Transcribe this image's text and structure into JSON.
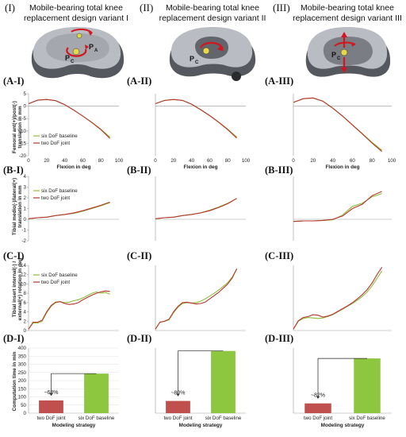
{
  "figure": {
    "columns": [
      {
        "roman": "(I)",
        "title_line1": "Mobile-bearing total knee",
        "title_line2": "replacement design variant I",
        "points": [
          "P",
          "A",
          "P",
          "C"
        ]
      },
      {
        "roman": "(II)",
        "title_line1": "Mobile-bearing total knee",
        "title_line2": "replacement design variant II",
        "points": [
          "P",
          "C"
        ]
      },
      {
        "roman": "(III)",
        "title_line1": "Mobile-bearing total knee",
        "title_line2": "replacement design variant III",
        "points": [
          "P",
          "C"
        ]
      }
    ],
    "colors": {
      "six_dof": "#8fbc3a",
      "two_dof": "#b8352e",
      "bar_two": "#c0504d",
      "bar_six": "#8dc63f",
      "implant_light": "#b9bcc2",
      "implant_dark": "#55585e",
      "arrow": "#d4161c",
      "ball": "#e6d84a"
    }
  },
  "chart_data": [
    {
      "id": "A-I",
      "type": "line",
      "panel_label": "(A-I)",
      "ylabel_line1": "Femoral ant(+)/post(-)",
      "ylabel_line2": "translation in mm",
      "xlabel": "Flexion in deg",
      "xlim": [
        0,
        100
      ],
      "ylim": [
        -20,
        5
      ],
      "xticks": [
        0,
        20,
        40,
        60,
        80,
        100
      ],
      "yticks": [
        -20,
        -15,
        -10,
        -5,
        0,
        5
      ],
      "legend": [
        "six DoF baseline",
        "two DoF joint"
      ],
      "series": [
        {
          "name": "six DoF baseline",
          "x": [
            0,
            10,
            20,
            30,
            40,
            50,
            60,
            70,
            80,
            90
          ],
          "y": [
            1.0,
            2.4,
            2.7,
            2.2,
            0.6,
            -1.6,
            -4.0,
            -6.5,
            -9.3,
            -12.5
          ]
        },
        {
          "name": "two DoF joint",
          "x": [
            0,
            10,
            20,
            30,
            40,
            50,
            60,
            70,
            80,
            90
          ],
          "y": [
            1.0,
            2.4,
            2.7,
            2.2,
            0.6,
            -1.6,
            -4.0,
            -6.6,
            -9.5,
            -13.0
          ]
        }
      ]
    },
    {
      "id": "A-II",
      "type": "line",
      "panel_label": "(A-II)",
      "xlabel": "Flexion in deg",
      "xlim": [
        0,
        100
      ],
      "ylim": [
        -20,
        5
      ],
      "xticks": [
        0,
        20,
        40,
        60,
        80,
        100
      ],
      "yticks": [],
      "series": [
        {
          "name": "six DoF baseline",
          "x": [
            0,
            10,
            20,
            30,
            40,
            50,
            60,
            70,
            80,
            90
          ],
          "y": [
            1.0,
            2.3,
            2.7,
            2.3,
            0.8,
            -1.4,
            -3.8,
            -6.4,
            -9.3,
            -12.5
          ]
        },
        {
          "name": "two DoF joint",
          "x": [
            0,
            10,
            20,
            30,
            40,
            50,
            60,
            70,
            80,
            90
          ],
          "y": [
            1.0,
            2.3,
            2.7,
            2.3,
            0.8,
            -1.4,
            -3.8,
            -6.5,
            -9.5,
            -12.9
          ]
        }
      ]
    },
    {
      "id": "A-III",
      "type": "line",
      "panel_label": "(A-III)",
      "xlabel": "Flexion in deg",
      "xlim": [
        0,
        100
      ],
      "ylim": [
        -20,
        5
      ],
      "xticks": [
        0,
        20,
        40,
        60,
        80,
        100
      ],
      "yticks": [],
      "series": [
        {
          "name": "six DoF baseline",
          "x": [
            0,
            10,
            20,
            30,
            40,
            50,
            60,
            70,
            80,
            90
          ],
          "y": [
            1.5,
            3.0,
            3.3,
            2.0,
            -0.8,
            -4.0,
            -7.5,
            -11.0,
            -14.6,
            -17.8
          ]
        },
        {
          "name": "two DoF joint",
          "x": [
            0,
            10,
            20,
            30,
            40,
            50,
            60,
            70,
            80,
            90
          ],
          "y": [
            1.5,
            3.0,
            3.3,
            2.0,
            -0.8,
            -4.0,
            -7.6,
            -11.2,
            -14.9,
            -18.3
          ]
        }
      ]
    },
    {
      "id": "B-I",
      "type": "line",
      "panel_label": "(B-I)",
      "ylabel_line1": "Tibial medio(-)/lateral(+)",
      "ylabel_line2": "translation in mm",
      "xlim": [
        0,
        100
      ],
      "ylim": [
        -2,
        4
      ],
      "yticks": [
        -2,
        -1,
        0,
        1,
        2,
        3,
        4
      ],
      "legend": [
        "six DoF baseline",
        "two DoF joint"
      ],
      "series": [
        {
          "name": "six DoF baseline",
          "x": [
            0,
            10,
            20,
            30,
            40,
            50,
            60,
            70,
            80,
            90
          ],
          "y": [
            0.05,
            0.15,
            0.2,
            0.35,
            0.45,
            0.55,
            0.75,
            1.0,
            1.25,
            1.55
          ]
        },
        {
          "name": "two DoF joint",
          "x": [
            0,
            10,
            20,
            30,
            40,
            50,
            60,
            70,
            80,
            90
          ],
          "y": [
            0.05,
            0.15,
            0.2,
            0.35,
            0.45,
            0.6,
            0.8,
            1.05,
            1.3,
            1.6
          ]
        }
      ]
    },
    {
      "id": "B-II",
      "type": "line",
      "panel_label": "(B-II)",
      "xlim": [
        0,
        100
      ],
      "ylim": [
        -2,
        4
      ],
      "series": [
        {
          "name": "six DoF baseline",
          "x": [
            0,
            10,
            20,
            30,
            40,
            50,
            60,
            70,
            80,
            90
          ],
          "y": [
            0.05,
            0.15,
            0.2,
            0.35,
            0.45,
            0.6,
            0.85,
            1.15,
            1.5,
            1.95
          ]
        },
        {
          "name": "two DoF joint",
          "x": [
            0,
            10,
            20,
            30,
            40,
            50,
            60,
            70,
            80,
            90
          ],
          "y": [
            0.05,
            0.15,
            0.2,
            0.35,
            0.45,
            0.6,
            0.8,
            1.1,
            1.45,
            1.95
          ]
        }
      ]
    },
    {
      "id": "B-III",
      "type": "line",
      "panel_label": "(B-III)",
      "xlim": [
        0,
        100
      ],
      "ylim": [
        -2,
        4
      ],
      "series": [
        {
          "name": "six DoF baseline",
          "x": [
            0,
            10,
            20,
            30,
            40,
            50,
            60,
            70,
            80,
            90
          ],
          "y": [
            -0.2,
            -0.15,
            -0.15,
            -0.1,
            -0.05,
            0.4,
            1.2,
            1.5,
            2.1,
            2.4
          ]
        },
        {
          "name": "two DoF joint",
          "x": [
            0,
            10,
            20,
            30,
            40,
            50,
            60,
            70,
            80,
            90
          ],
          "y": [
            -0.2,
            -0.15,
            -0.15,
            -0.1,
            0.0,
            0.3,
            1.0,
            1.4,
            2.2,
            2.6
          ]
        }
      ]
    },
    {
      "id": "C-I",
      "type": "line",
      "panel_label": "(C-I)",
      "ylabel_line1": "Tibial insert internal(-) /",
      "ylabel_line2": "external(+) rotation in deg",
      "xlim": [
        0,
        100
      ],
      "ylim": [
        0,
        14
      ],
      "yticks": [
        0,
        2,
        4,
        6,
        8,
        10,
        12,
        14
      ],
      "legend": [
        "six DoF baseline",
        "two DoF joint"
      ],
      "series": [
        {
          "name": "six DoF baseline",
          "x": [
            0,
            5,
            10,
            15,
            20,
            25,
            30,
            35,
            40,
            45,
            50,
            55,
            60,
            65,
            70,
            75,
            80,
            85,
            90
          ],
          "y": [
            0.3,
            1.6,
            1.6,
            2.0,
            3.8,
            5.2,
            6.0,
            6.2,
            6.0,
            6.1,
            6.4,
            6.6,
            7.0,
            7.5,
            8.0,
            8.3,
            8.0,
            8.2,
            7.8
          ]
        },
        {
          "name": "two DoF joint",
          "x": [
            0,
            5,
            10,
            15,
            20,
            25,
            30,
            35,
            40,
            45,
            50,
            55,
            60,
            65,
            70,
            75,
            80,
            85,
            90
          ],
          "y": [
            0.3,
            1.8,
            1.8,
            2.2,
            4.0,
            5.4,
            6.1,
            6.2,
            5.8,
            5.6,
            5.7,
            6.0,
            6.6,
            7.1,
            7.6,
            8.0,
            8.3,
            8.5,
            8.4
          ]
        }
      ]
    },
    {
      "id": "C-II",
      "type": "line",
      "panel_label": "(C-II)",
      "xlim": [
        0,
        100
      ],
      "ylim": [
        0,
        14
      ],
      "series": [
        {
          "name": "six DoF baseline",
          "x": [
            0,
            5,
            10,
            15,
            20,
            25,
            30,
            35,
            40,
            45,
            50,
            55,
            60,
            65,
            70,
            75,
            80,
            85,
            90
          ],
          "y": [
            0.3,
            1.8,
            2.0,
            2.3,
            3.8,
            5.0,
            5.8,
            6.0,
            5.9,
            6.0,
            6.3,
            6.8,
            7.4,
            8.0,
            8.7,
            9.5,
            10.3,
            11.5,
            13.2
          ]
        },
        {
          "name": "two DoF joint",
          "x": [
            0,
            5,
            10,
            15,
            20,
            25,
            30,
            35,
            40,
            45,
            50,
            55,
            60,
            65,
            70,
            75,
            80,
            85,
            90
          ],
          "y": [
            0.3,
            1.8,
            2.0,
            2.4,
            4.0,
            5.2,
            6.0,
            6.1,
            5.9,
            5.7,
            5.8,
            6.1,
            6.8,
            7.5,
            8.2,
            9.1,
            10.0,
            11.3,
            13.3
          ]
        }
      ]
    },
    {
      "id": "C-III",
      "type": "line",
      "panel_label": "(C-III)",
      "xlim": [
        0,
        100
      ],
      "ylim": [
        0,
        14
      ],
      "series": [
        {
          "name": "six DoF baseline",
          "x": [
            0,
            5,
            10,
            15,
            20,
            25,
            30,
            35,
            40,
            45,
            50,
            55,
            60,
            65,
            70,
            75,
            80,
            85,
            90
          ],
          "y": [
            0.3,
            2.0,
            2.6,
            2.8,
            2.7,
            2.6,
            2.7,
            3.0,
            3.4,
            4.0,
            4.6,
            5.2,
            5.8,
            6.5,
            7.3,
            8.3,
            9.6,
            11.2,
            12.8
          ]
        },
        {
          "name": "two DoF joint",
          "x": [
            0,
            5,
            10,
            15,
            20,
            25,
            30,
            35,
            40,
            45,
            50,
            55,
            60,
            65,
            70,
            75,
            80,
            85,
            90
          ],
          "y": [
            0.3,
            2.1,
            2.8,
            3.0,
            3.4,
            3.3,
            2.9,
            3.1,
            3.5,
            4.1,
            4.7,
            5.3,
            6.0,
            6.8,
            7.7,
            8.8,
            10.2,
            12.0,
            13.6
          ]
        }
      ]
    },
    {
      "id": "D-I",
      "type": "bar",
      "panel_label": "(D-I)",
      "ylabel": "Computation time in min",
      "xlabel": "Modeling strategy",
      "ylim": [
        0,
        400
      ],
      "yticks": [
        0,
        50,
        100,
        150,
        200,
        250,
        300,
        350,
        400
      ],
      "categories": [
        "two DoF joint",
        "six DoF baseline"
      ],
      "values": [
        78,
        243
      ],
      "annotation": "~68%"
    },
    {
      "id": "D-II",
      "type": "bar",
      "panel_label": "(D-II)",
      "xlabel": "Modeling strategy",
      "ylim": [
        0,
        400
      ],
      "categories": [
        "two DoF joint",
        "six DoF baseline"
      ],
      "values": [
        75,
        382
      ],
      "annotation": "~80%"
    },
    {
      "id": "D-III",
      "type": "bar",
      "panel_label": "(D-III)",
      "xlabel": "Modeling strategy",
      "ylim": [
        0,
        400
      ],
      "categories": [
        "two DoF joint",
        "six DoF baseline"
      ],
      "values": [
        60,
        336
      ],
      "annotation": "~82%"
    }
  ]
}
